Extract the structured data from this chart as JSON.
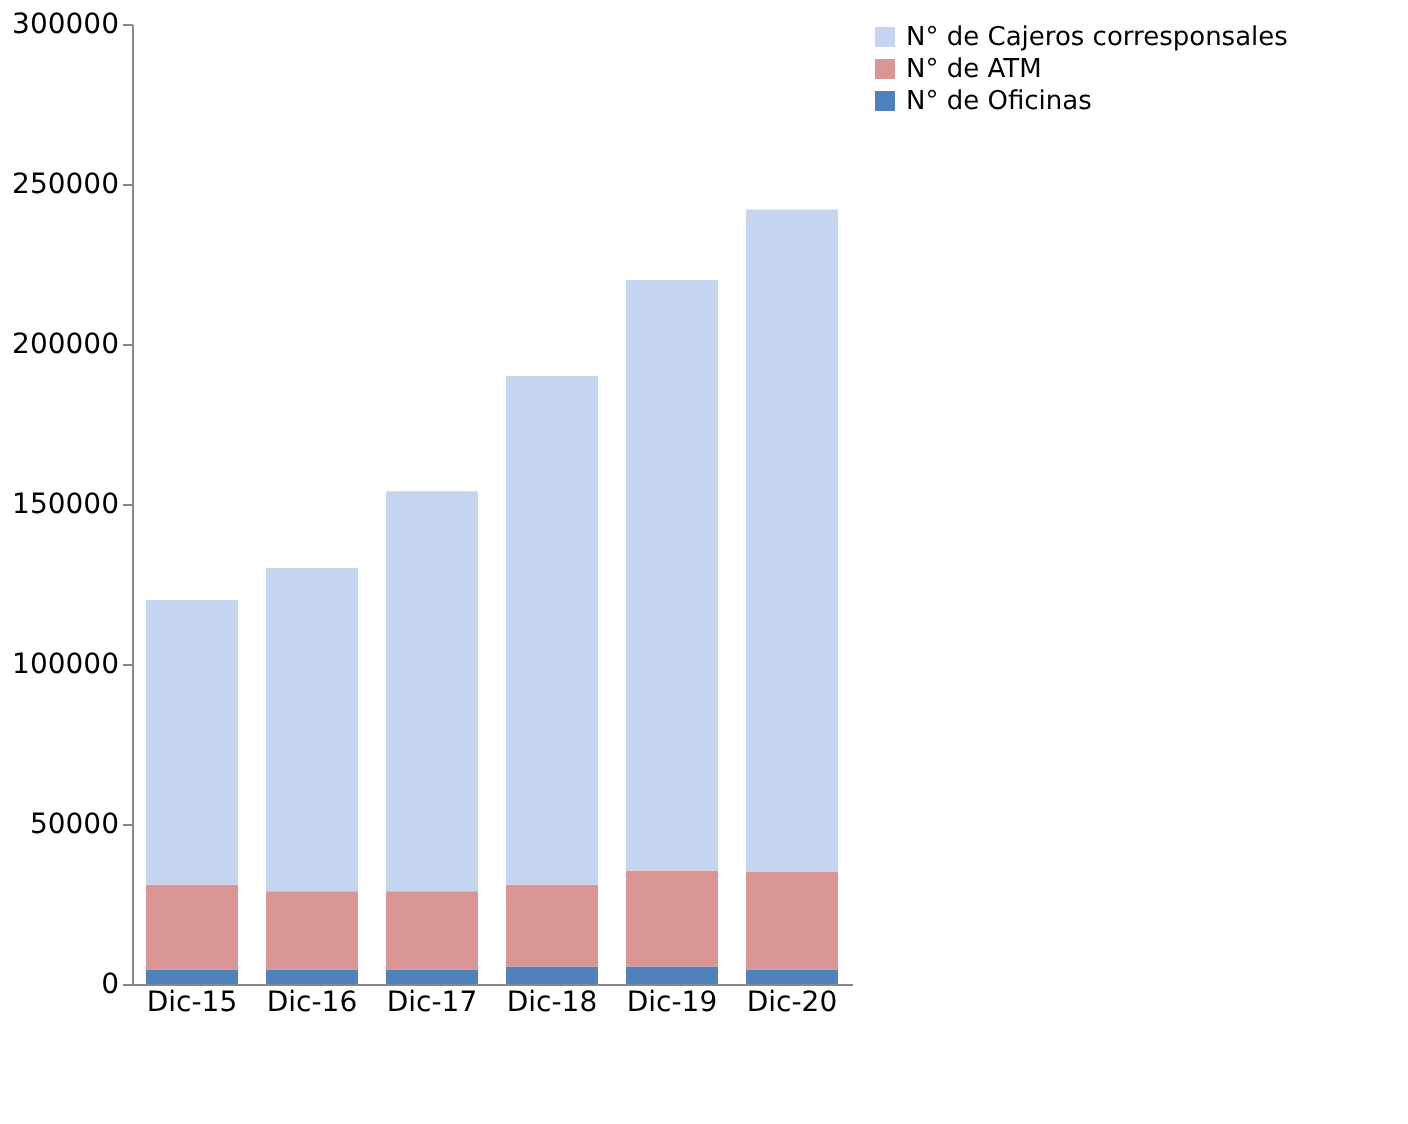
{
  "chart_data": {
    "type": "bar",
    "stacked": true,
    "categories": [
      "Dic-15",
      "Dic-16",
      "Dic-17",
      "Dic-18",
      "Dic-19",
      "Dic-20"
    ],
    "series": [
      {
        "name": "N° de Oficinas",
        "color": "#4f81bd",
        "values": [
          4500,
          4500,
          4500,
          5500,
          5500,
          4500
        ]
      },
      {
        "name": "N° de ATM",
        "color": "#d99694",
        "values": [
          26500,
          24500,
          24500,
          25500,
          30000,
          30500
        ]
      },
      {
        "name": "N° de Cajeros corresponsales",
        "color": "#c6d5ef",
        "values": [
          89000,
          101000,
          125000,
          159000,
          184500,
          207000
        ]
      }
    ],
    "ylim": [
      0,
      300000
    ],
    "yticks": [
      0,
      50000,
      100000,
      150000,
      200000,
      250000,
      300000
    ],
    "grid": false,
    "legend": "right"
  }
}
